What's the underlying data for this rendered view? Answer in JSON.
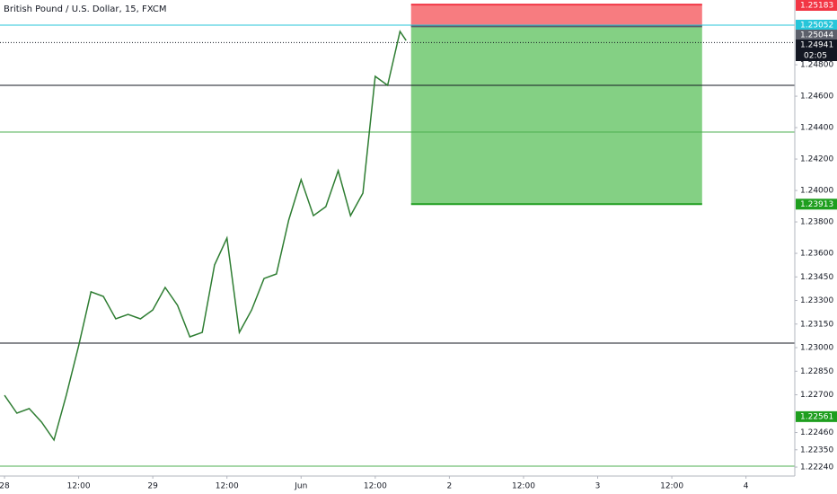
{
  "chart_data": {
    "type": "line",
    "title": "British Pound / U.S. Dollar, 15, FXCM",
    "x": [
      0,
      2,
      4,
      6,
      8,
      10,
      12,
      14,
      16,
      18,
      20,
      22,
      24,
      26,
      28,
      30,
      32,
      34,
      36,
      38,
      40,
      42,
      44,
      46,
      48,
      50,
      52,
      54,
      56,
      58,
      60,
      62,
      64,
      65
    ],
    "series": [
      {
        "color": "#2e7d32",
        "values": [
          1.22697,
          1.22583,
          1.22612,
          1.22526,
          1.22412,
          1.22697,
          1.23012,
          1.23355,
          1.23326,
          1.23183,
          1.23212,
          1.23183,
          1.2324,
          1.23383,
          1.23269,
          1.23069,
          1.23097,
          1.23526,
          1.23697,
          1.23097,
          1.2324,
          1.2344,
          1.23469,
          1.23812,
          1.24069,
          1.2384,
          1.23897,
          1.24126,
          1.2384,
          1.23983,
          1.24726,
          1.24669,
          1.25012,
          1.24954
        ]
      }
    ],
    "xlim": [
      -0.73,
      127.9
    ],
    "xticks": [
      {
        "value": 0,
        "label": "28"
      },
      {
        "value": 12,
        "label": "12:00"
      },
      {
        "value": 24,
        "label": "29"
      },
      {
        "value": 36,
        "label": "12:00"
      },
      {
        "value": 48,
        "label": "Jun"
      },
      {
        "value": 60,
        "label": "12:00"
      },
      {
        "value": 72,
        "label": "2"
      },
      {
        "value": 84,
        "label": "12:00"
      },
      {
        "value": 96,
        "label": "3"
      },
      {
        "value": 108,
        "label": "12:00"
      },
      {
        "value": 120,
        "label": "4"
      }
    ],
    "ylim": [
      1.22183,
      1.25212
    ],
    "yticks": [
      {
        "value": 1.248,
        "label": "1.24800"
      },
      {
        "value": 1.246,
        "label": "1.24600"
      },
      {
        "value": 1.244,
        "label": "1.24400"
      },
      {
        "value": 1.242,
        "label": "1.24200"
      },
      {
        "value": 1.24,
        "label": "1.24000"
      },
      {
        "value": 1.238,
        "label": "1.23800"
      },
      {
        "value": 1.236,
        "label": "1.23600"
      },
      {
        "value": 1.2345,
        "label": "1.23450"
      },
      {
        "value": 1.233,
        "label": "1.23300"
      },
      {
        "value": 1.2315,
        "label": "1.23150"
      },
      {
        "value": 1.23,
        "label": "1.23000"
      },
      {
        "value": 1.2285,
        "label": "1.22850"
      },
      {
        "value": 1.227,
        "label": "1.22700"
      },
      {
        "value": 1.2246,
        "label": "1.22460"
      },
      {
        "value": 1.2235,
        "label": "1.22350"
      },
      {
        "value": 1.2224,
        "label": "1.22240"
      }
    ],
    "current_price": {
      "value": 1.24941,
      "color": "#131722",
      "countdown": "02:05"
    },
    "levels": [
      {
        "value": 1.25052,
        "color": "#26c6da",
        "tag": true
      },
      {
        "value": 1.24669,
        "color": "#131722"
      },
      {
        "value": 1.24372,
        "color": "#4caf50"
      },
      {
        "value": 1.23029,
        "color": "#131722"
      },
      {
        "value": 1.22246,
        "color": "#4caf50"
      }
    ],
    "position": {
      "start": 65.8,
      "end": 112.9,
      "stop": 1.25183,
      "entry": 1.25044,
      "target": 1.23913,
      "stop_color": "#f23645",
      "stop_fill": "#f77c80",
      "entry_color": "#5d606b",
      "target_color": "#1e9e1e",
      "target_fill": "#84d084"
    },
    "tags": [
      {
        "value": 1.22561,
        "color": "#1e9e1e"
      }
    ]
  }
}
